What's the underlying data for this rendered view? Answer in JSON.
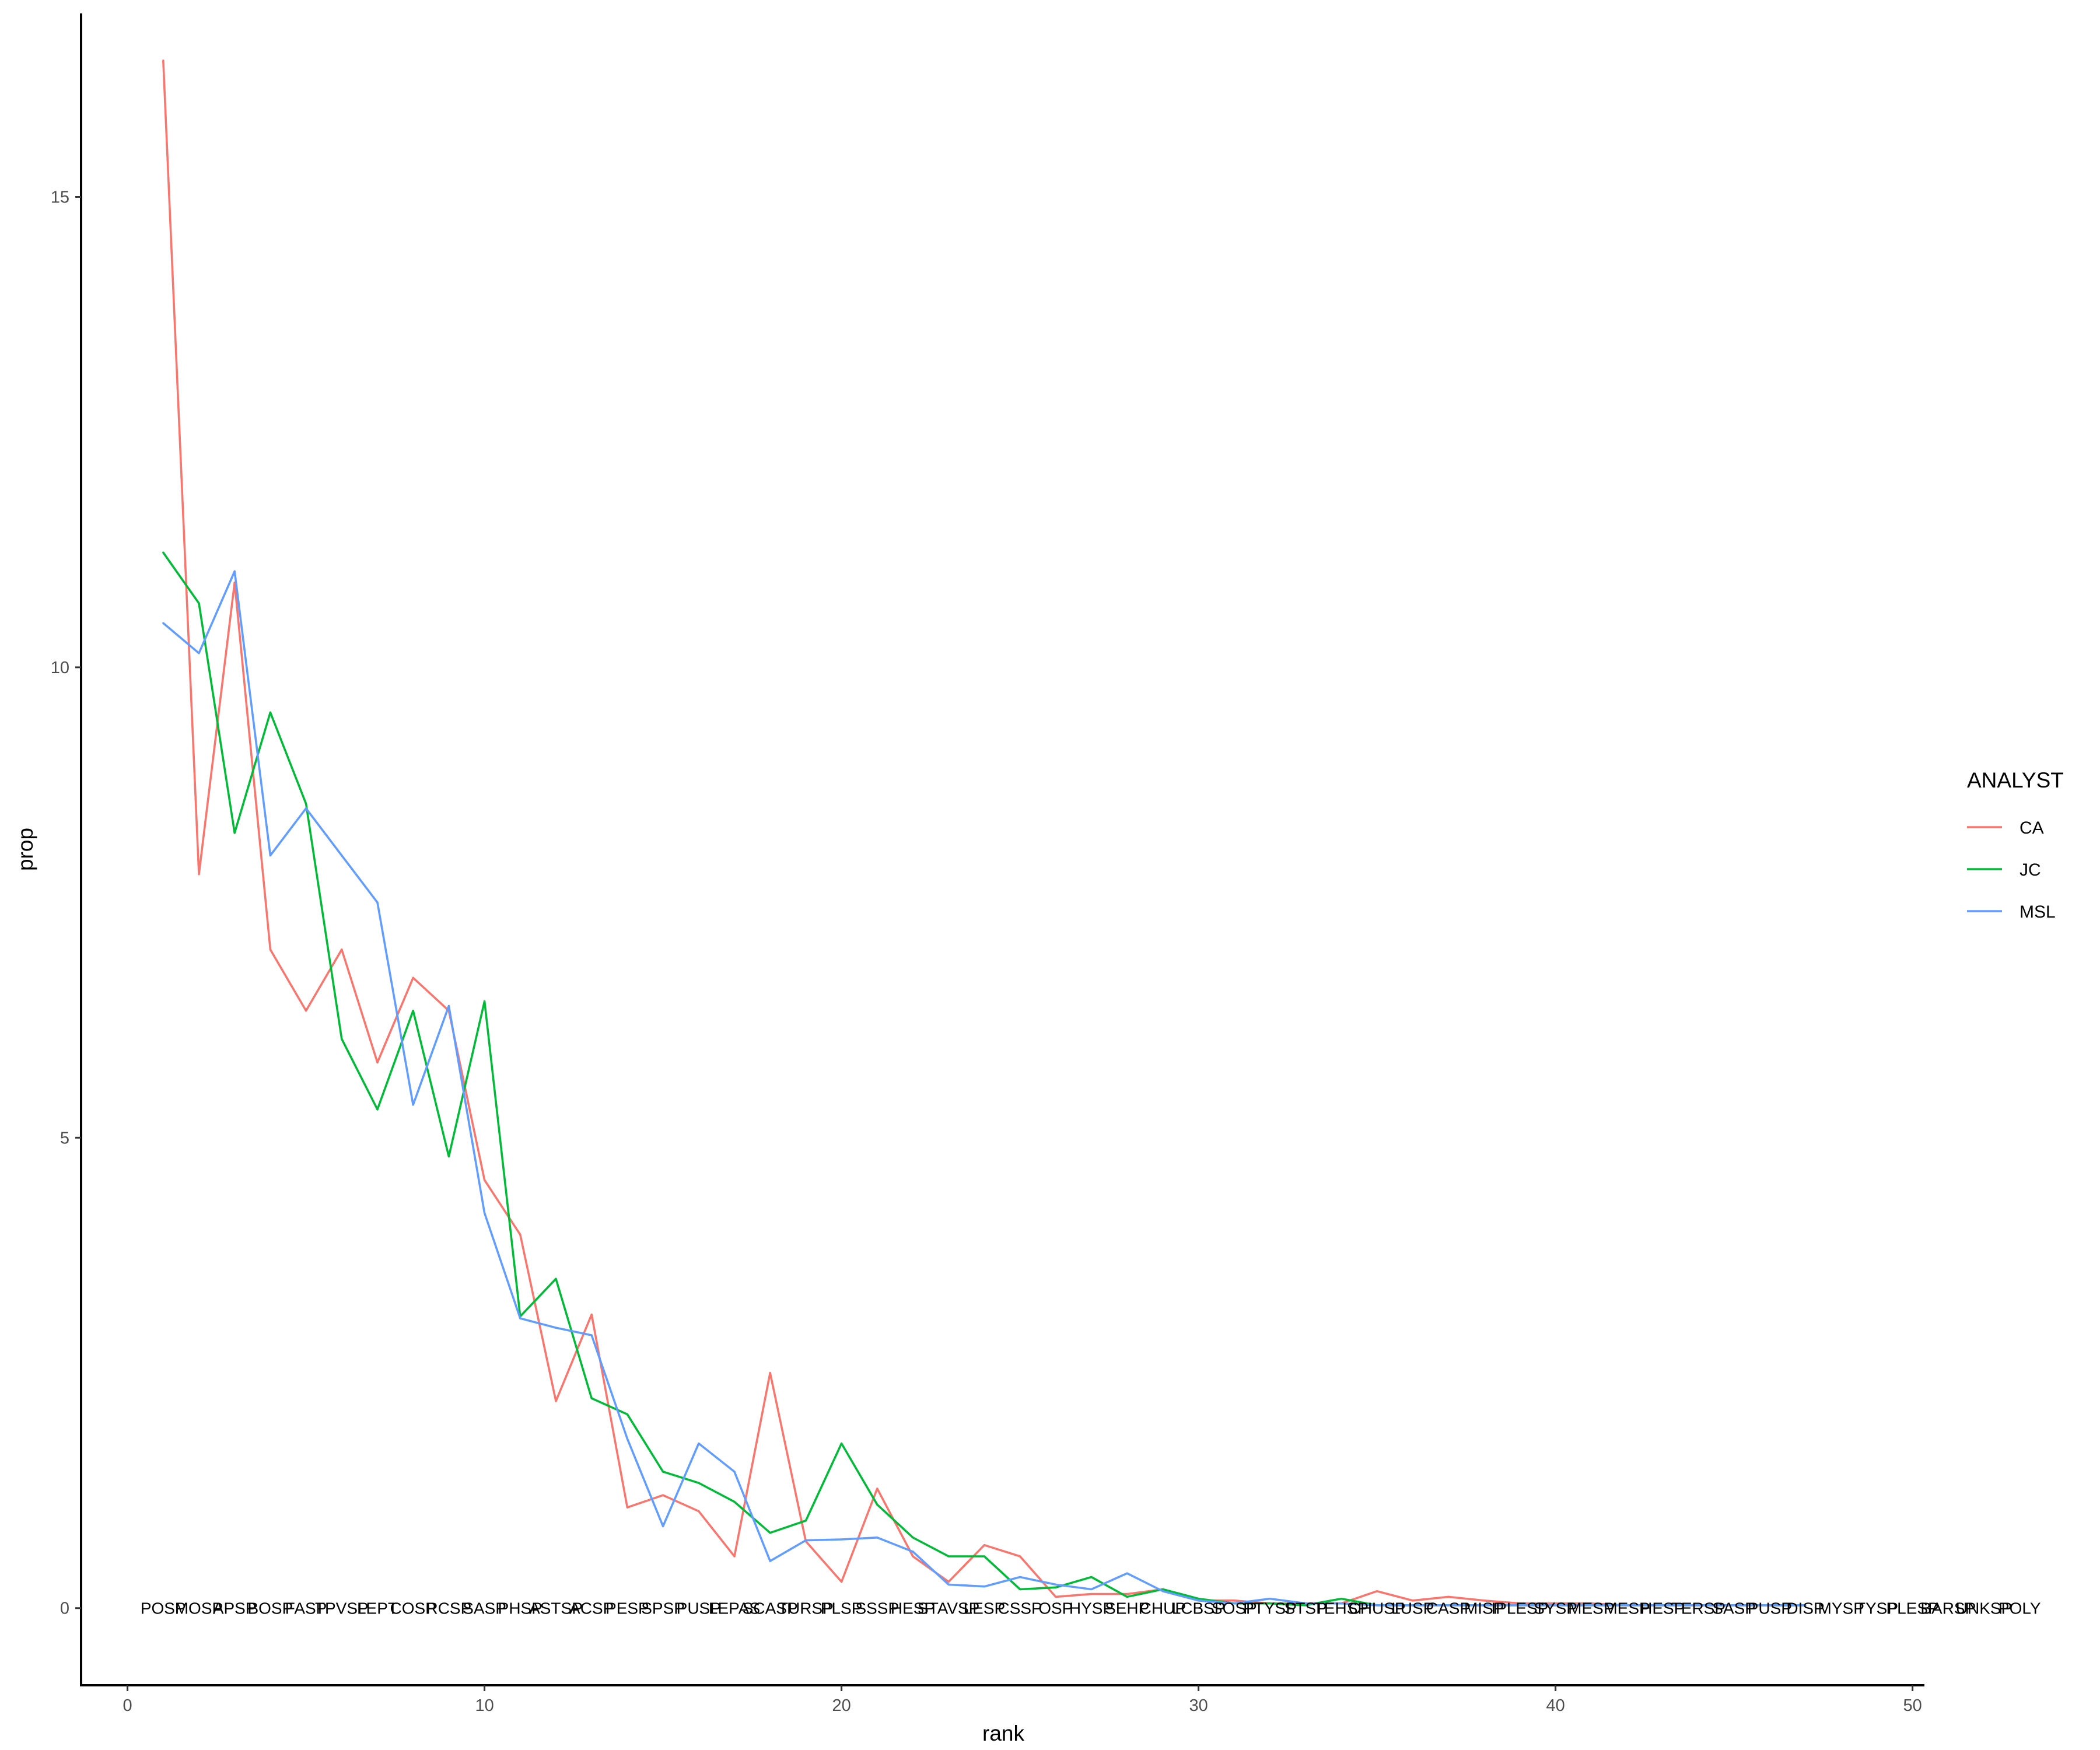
{
  "chart_data": {
    "type": "line",
    "title": "",
    "xlabel": "rank",
    "ylabel": "prop",
    "xlim": [
      -1.3,
      50.3
    ],
    "ylim": [
      -0.82,
      16.95
    ],
    "x_ticks": [
      0,
      10,
      20,
      30,
      40,
      50
    ],
    "y_ticks": [
      0,
      5,
      10,
      15
    ],
    "grid": false,
    "legend": {
      "title": "ANALYST",
      "position": "right"
    },
    "species_labels": [
      "POSP",
      "MOSP",
      "APSP",
      "BOSP",
      "FASP",
      "TPVSP",
      "LEPT",
      "COSP",
      "RCSP",
      "SASP",
      "PHSP",
      "ASTSP",
      "ACSP",
      "PESP",
      "SPSP",
      "PUSP",
      "LEPAS",
      "SCASP",
      "TURSP",
      "PLSP",
      "SSSP",
      "HESP",
      "STAVSP",
      "LESP",
      "CSSP",
      "OSP",
      "HYSP",
      "SEHP",
      "CHUP",
      "LCBSP",
      "SOSP",
      "PTYSP",
      "STSP",
      "TEHSP",
      "CHUSP",
      "LUSP",
      "CASP",
      "MISP",
      "IPLESP",
      "SYSP",
      "MESP",
      "MESP",
      "HESP",
      "TERSP",
      "SASP",
      "PUSP",
      "DISP",
      "MYSP",
      "TYSP",
      "PLESP",
      "BARSP",
      "UNKSP",
      "POLY"
    ],
    "series": [
      {
        "name": "CA",
        "color": "#F8766D",
        "x": [
          1,
          2,
          3,
          4,
          5,
          6,
          7,
          8,
          9,
          10,
          11,
          12,
          13,
          14,
          15,
          16,
          17,
          18,
          19,
          20,
          21,
          22,
          23,
          24,
          25,
          26,
          27,
          28,
          29,
          30,
          31,
          32,
          33,
          34,
          35,
          36,
          37,
          38,
          39,
          40,
          41,
          42,
          43,
          44,
          45,
          46,
          47
        ],
        "values": [
          16.45,
          7.8,
          10.9,
          7.0,
          6.35,
          7.0,
          5.8,
          6.7,
          6.35,
          4.55,
          3.97,
          2.2,
          3.12,
          1.07,
          1.2,
          1.03,
          0.55,
          2.5,
          0.71,
          0.28,
          1.27,
          0.55,
          0.28,
          0.67,
          0.55,
          0.12,
          0.15,
          0.15,
          0.2,
          0.08,
          0.08,
          0.05,
          0.05,
          0.05,
          0.18,
          0.08,
          0.12,
          0.08,
          0.05,
          0.05,
          0.05,
          0.03,
          0.03,
          0.03,
          0.03,
          0.03,
          0.03
        ]
      },
      {
        "name": "JC",
        "color": "#00BA38",
        "x": [
          1,
          2,
          3,
          4,
          5,
          6,
          7,
          8,
          9,
          10,
          11,
          12,
          13,
          14,
          15,
          16,
          17,
          18,
          19,
          20,
          21,
          22,
          23,
          24,
          25,
          26,
          27,
          28,
          29,
          30,
          31,
          32,
          33,
          34,
          35,
          36,
          37,
          38,
          39,
          40,
          41,
          42,
          43,
          44,
          45,
          46,
          47
        ],
        "values": [
          11.22,
          10.68,
          8.24,
          9.52,
          8.55,
          6.05,
          5.3,
          6.35,
          4.8,
          6.45,
          3.1,
          3.5,
          2.23,
          2.06,
          1.45,
          1.33,
          1.13,
          0.8,
          0.93,
          1.75,
          1.1,
          0.75,
          0.55,
          0.55,
          0.2,
          0.22,
          0.33,
          0.12,
          0.2,
          0.1,
          0.05,
          0.05,
          0.03,
          0.1,
          0.03,
          0.03,
          0.03,
          0.03,
          0.03,
          0.03,
          0.03,
          0.03,
          0.03,
          0.03,
          0.03,
          0.03,
          0.03
        ]
      },
      {
        "name": "MSL",
        "color": "#619CFF",
        "x": [
          1,
          2,
          3,
          4,
          5,
          6,
          7,
          8,
          9,
          10,
          11,
          12,
          13,
          14,
          15,
          16,
          17,
          18,
          19,
          20,
          21,
          22,
          23,
          24,
          25,
          26,
          27,
          28,
          29,
          30,
          31,
          32,
          33,
          34,
          35,
          36,
          37,
          38,
          39,
          40,
          41,
          42,
          43,
          44,
          45,
          46,
          47
        ],
        "values": [
          10.47,
          10.15,
          11.02,
          8.0,
          8.5,
          8.0,
          7.5,
          5.35,
          6.4,
          4.2,
          3.08,
          2.98,
          2.9,
          1.8,
          0.87,
          1.75,
          1.45,
          0.5,
          0.72,
          0.73,
          0.75,
          0.6,
          0.25,
          0.23,
          0.33,
          0.25,
          0.2,
          0.37,
          0.18,
          0.08,
          0.05,
          0.1,
          0.05,
          0.05,
          0.03,
          0.03,
          0.03,
          0.03,
          0.03,
          0.03,
          0.03,
          0.03,
          0.03,
          0.03,
          0.03,
          0.03,
          0.03
        ]
      }
    ]
  }
}
